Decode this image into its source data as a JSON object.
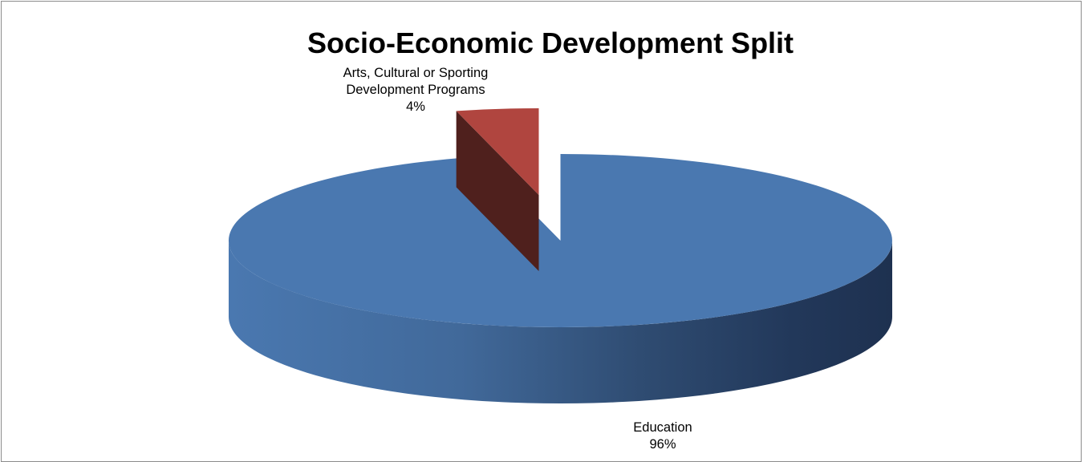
{
  "chart_data": {
    "type": "pie",
    "title": "Socio-Economic Development Split",
    "categories": [
      "Arts, Cultural or Sporting Development Programs",
      "Education"
    ],
    "values": [
      4,
      96
    ],
    "labels": [
      {
        "lines": [
          "Arts, Cultural or Sporting",
          "Development Programs"
        ],
        "percent": "4%"
      },
      {
        "lines": [
          "Education"
        ],
        "percent": "96%"
      }
    ],
    "colors": [
      "#b0453f",
      "#4a78b0"
    ],
    "style": "3d-exploded",
    "legend": "none"
  }
}
